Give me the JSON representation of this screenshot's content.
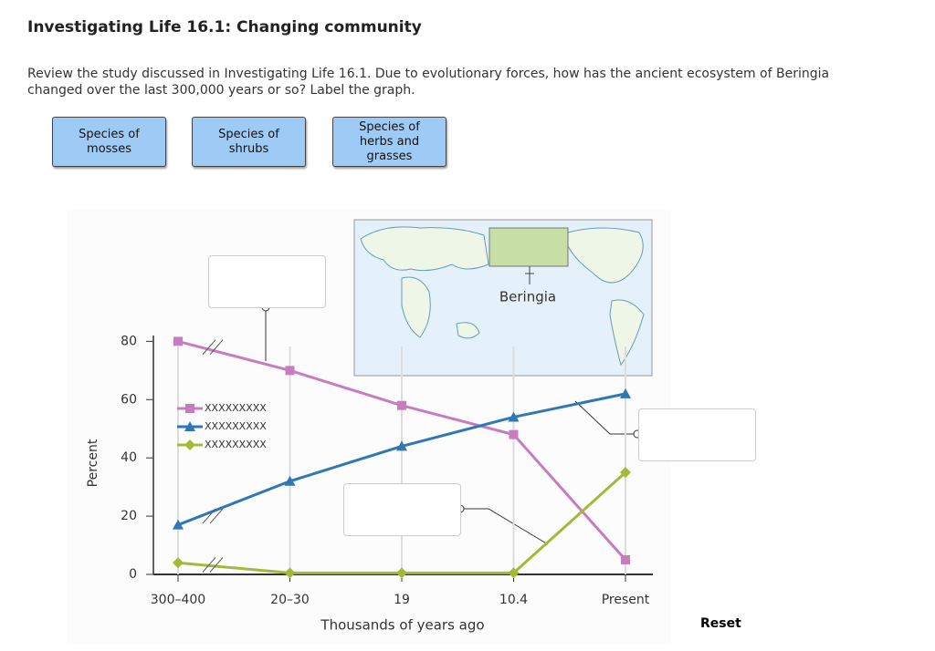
{
  "header": {
    "title": "Investigating Life 16.1: Changing community",
    "prompt": "Review the study discussed in Investigating Life 16.1. Due to evolutionary forces, how has the ancient ecosystem of Beringia changed over the last 300,000 years or so? Label the graph."
  },
  "labels": [
    "Species of mosses",
    "Species of shrubs",
    "Species of herbs and grasses"
  ],
  "map_label": "Beringia",
  "reset": "Reset",
  "chart_data": {
    "type": "line",
    "categories": [
      "300–400",
      "20–30",
      "19",
      "10.4",
      "Present"
    ],
    "xlabel": "Thousands of years ago",
    "ylabel": "Percent",
    "ylim": [
      0,
      82
    ],
    "yticks": [
      0,
      20,
      40,
      60,
      80
    ],
    "series": [
      {
        "name": "XXXXXXXXX",
        "color": "#c67dbf",
        "marker": "square",
        "values": [
          80,
          70,
          58,
          48,
          5
        ]
      },
      {
        "name": "XXXXXXXXX",
        "color": "#2f77b6",
        "marker": "triangle",
        "values": [
          17,
          32,
          44,
          54,
          62
        ]
      },
      {
        "name": "XXXXXXXXX",
        "color": "#a5b83a",
        "marker": "diamond",
        "values": [
          4,
          0.5,
          0.5,
          0.5,
          35
        ]
      }
    ]
  }
}
